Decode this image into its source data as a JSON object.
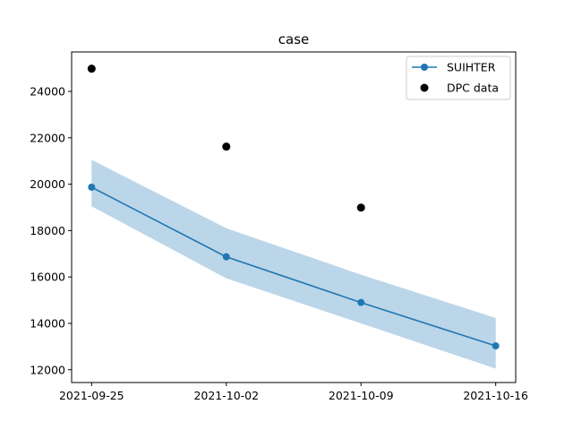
{
  "chart_data": {
    "type": "line",
    "title": "case",
    "xlabel": "",
    "ylabel": "",
    "x": [
      "2021-09-25",
      "2021-10-02",
      "2021-10-09",
      "2021-10-16"
    ],
    "x_tick_labels": [
      "2021-09-25",
      "2021-10-02",
      "2021-10-09",
      "2021-10-16"
    ],
    "ylim": [
      11450,
      25700
    ],
    "y_ticks": [
      12000,
      14000,
      16000,
      18000,
      20000,
      22000,
      24000
    ],
    "y_tick_labels": [
      "12000",
      "14000",
      "16000",
      "18000",
      "20000",
      "22000",
      "24000"
    ],
    "grid": false,
    "legend_position": "top-right",
    "series": [
      {
        "name": "SUIHTER",
        "kind": "line-marker",
        "color": "#1f77b4",
        "x": [
          "2021-09-25",
          "2021-10-02",
          "2021-10-09",
          "2021-10-16"
        ],
        "values": [
          19870,
          16870,
          14900,
          13030
        ],
        "band_upper": [
          21050,
          18100,
          16100,
          14230
        ],
        "band_lower": [
          19050,
          15940,
          14000,
          12050
        ],
        "band_color": "#1f77b4"
      },
      {
        "name": "DPC data",
        "kind": "scatter",
        "color": "#000000",
        "x": [
          "2021-09-25",
          "2021-10-02",
          "2021-10-09"
        ],
        "values": [
          24980,
          21620,
          18990
        ]
      }
    ]
  }
}
